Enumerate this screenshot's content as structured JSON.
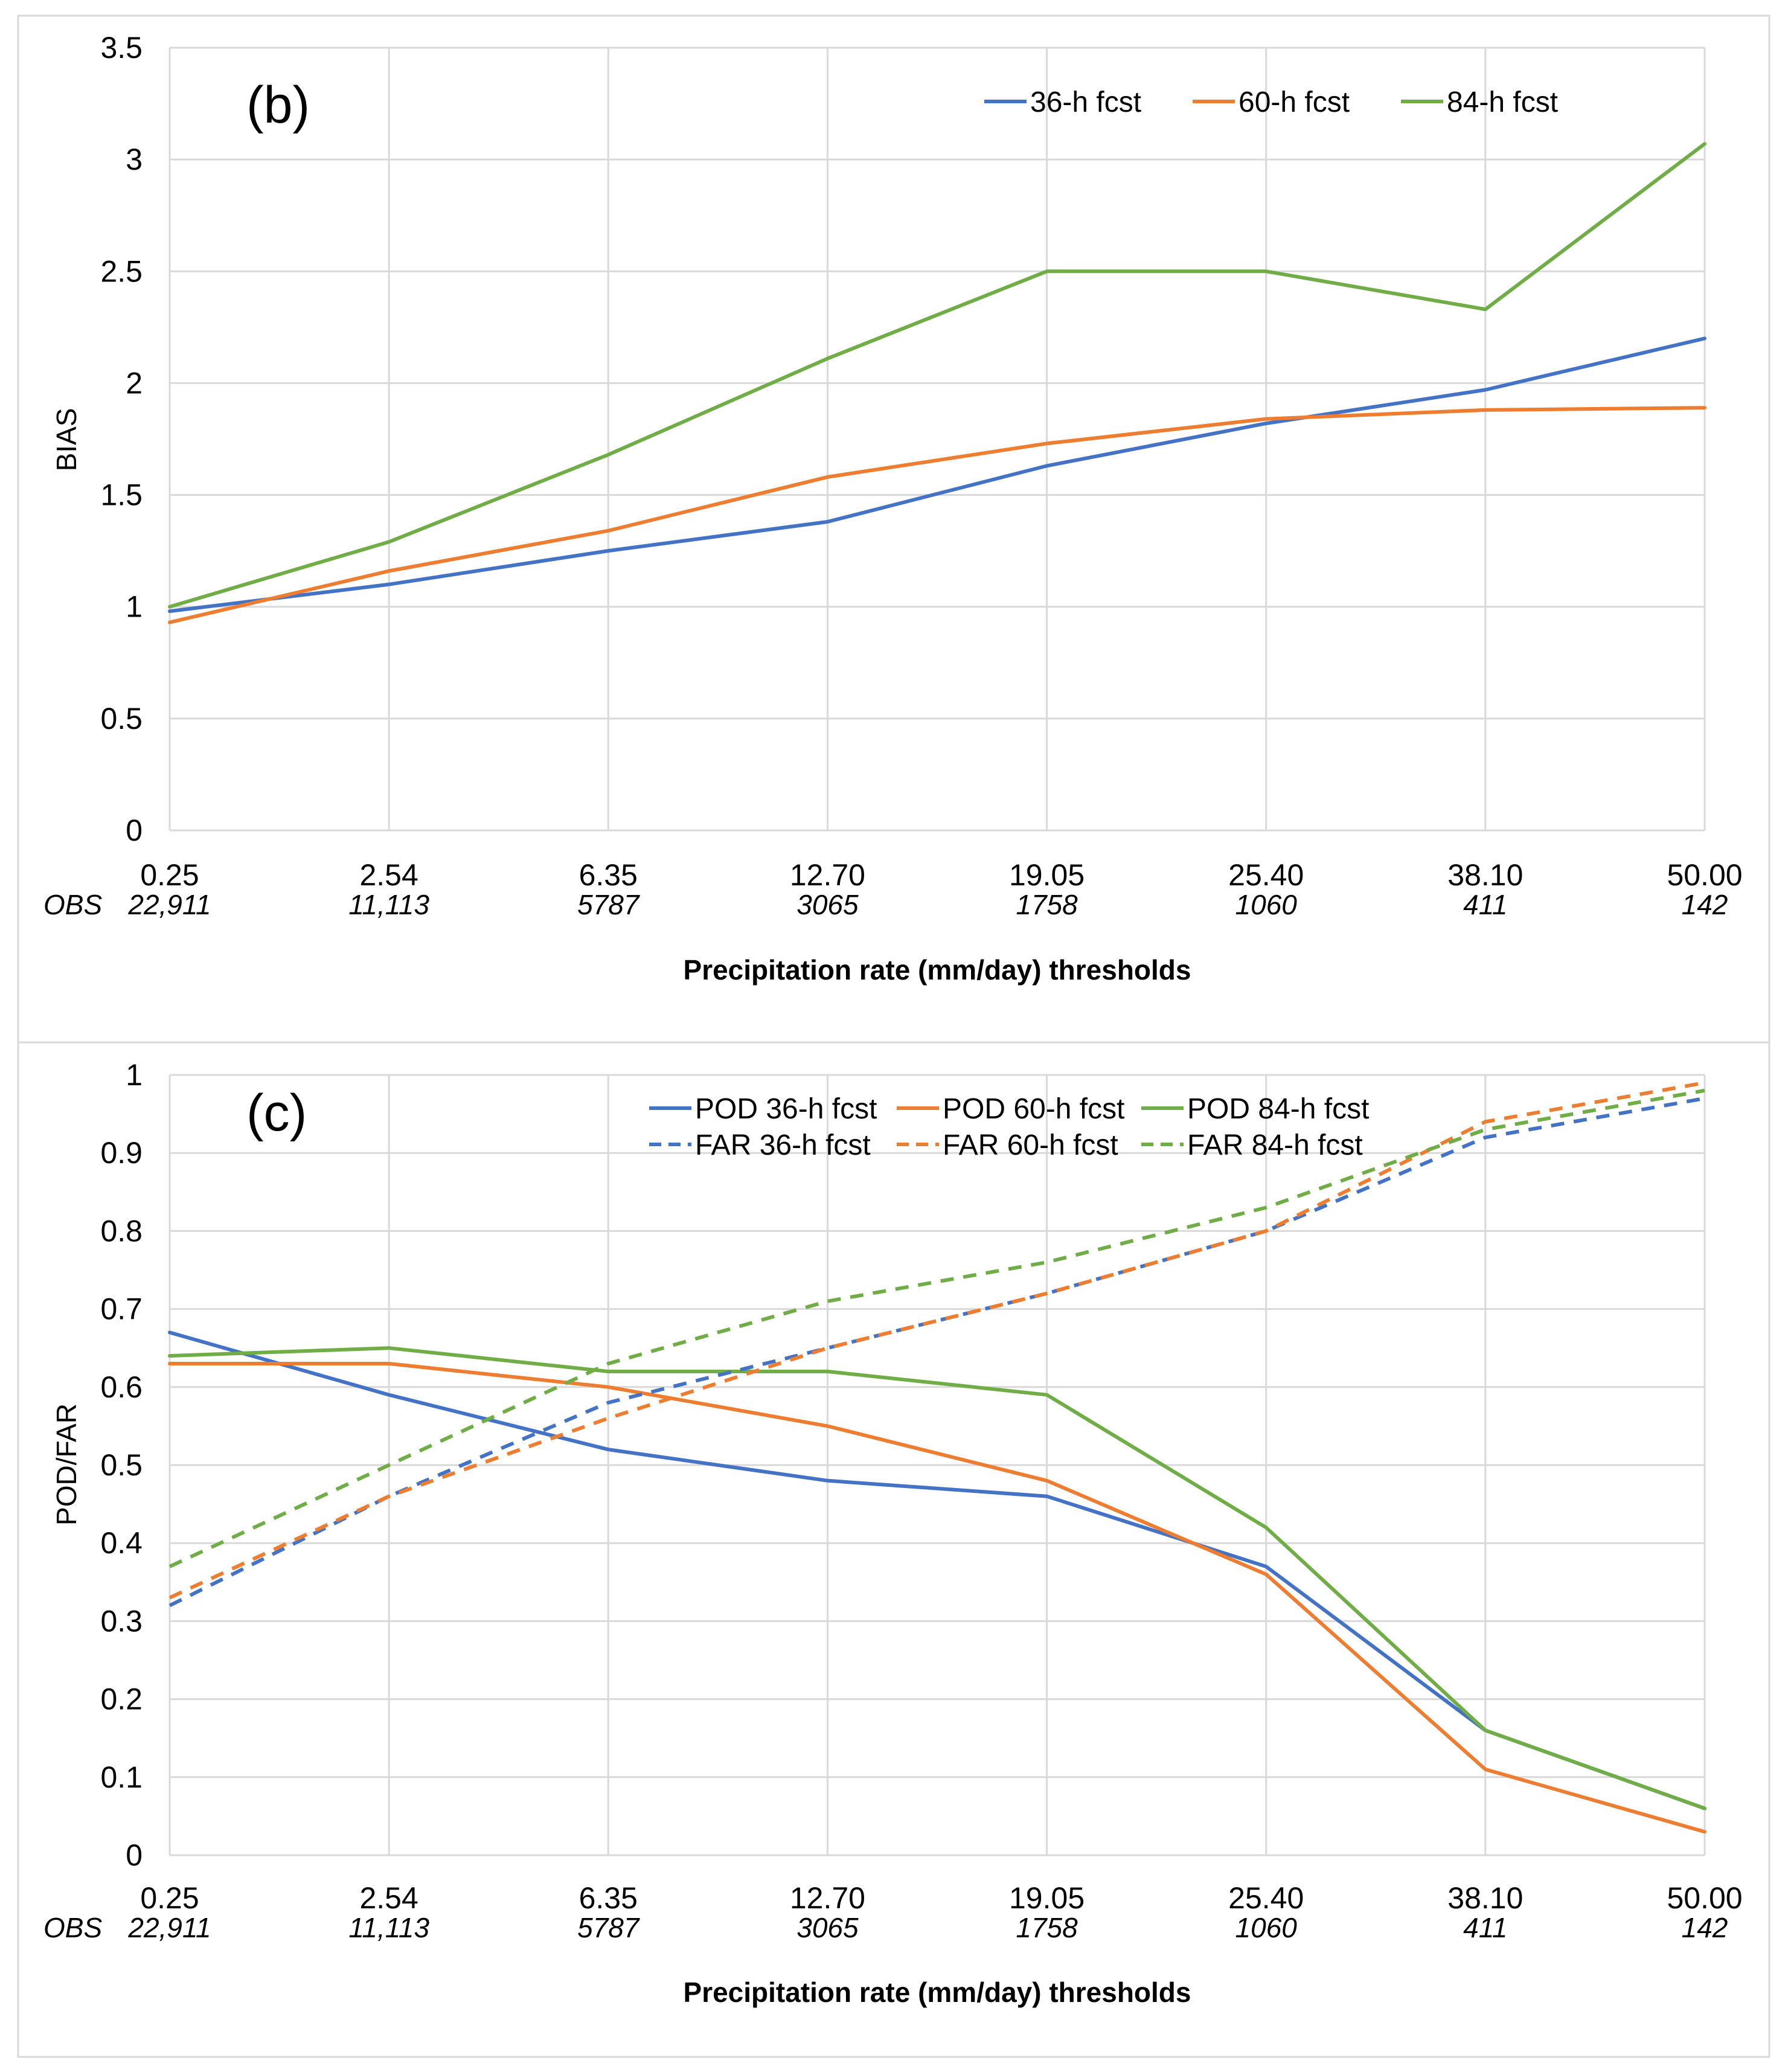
{
  "chart_data": [
    {
      "type": "line",
      "panel_label": "(b)",
      "categories": [
        "0.25",
        "2.54",
        "6.35",
        "12.70",
        "19.05",
        "25.40",
        "38.10",
        "50.00"
      ],
      "obs_label": "OBS",
      "obs_counts": [
        "22,911",
        "11,113",
        "5787",
        "3065",
        "1758",
        "1060",
        "411",
        "142"
      ],
      "ylabel": "BIAS",
      "xlabel": "Precipitation rate (mm/day) thresholds",
      "ylim": [
        0,
        3.5
      ],
      "yticks": [
        0,
        0.5,
        1,
        1.5,
        2,
        2.5,
        3,
        3.5
      ],
      "ytick_labels": [
        "0",
        "0.5",
        "1",
        "1.5",
        "2",
        "2.5",
        "3",
        "3.5"
      ],
      "grid": true,
      "legend_position": "top-right",
      "series": [
        {
          "name": "36-h fcst",
          "color": "#4472C4",
          "dash": "solid",
          "values": [
            0.98,
            1.1,
            1.25,
            1.38,
            1.63,
            1.82,
            1.97,
            2.2
          ]
        },
        {
          "name": "60-h fcst",
          "color": "#ED7D31",
          "dash": "solid",
          "values": [
            0.93,
            1.16,
            1.34,
            1.58,
            1.73,
            1.84,
            1.88,
            1.89
          ]
        },
        {
          "name": "84-h fcst",
          "color": "#70AD47",
          "dash": "solid",
          "values": [
            1.0,
            1.29,
            1.68,
            2.11,
            2.5,
            2.5,
            2.33,
            3.07
          ]
        }
      ]
    },
    {
      "type": "line",
      "panel_label": "(c)",
      "categories": [
        "0.25",
        "2.54",
        "6.35",
        "12.70",
        "19.05",
        "25.40",
        "38.10",
        "50.00"
      ],
      "obs_label": "OBS",
      "obs_counts": [
        "22,911",
        "11,113",
        "5787",
        "3065",
        "1758",
        "1060",
        "411",
        "142"
      ],
      "ylabel": "POD/FAR",
      "xlabel": "Precipitation rate (mm/day) thresholds",
      "ylim": [
        0,
        1
      ],
      "yticks": [
        0,
        0.1,
        0.2,
        0.3,
        0.4,
        0.5,
        0.6,
        0.7,
        0.8,
        0.9,
        1
      ],
      "ytick_labels": [
        "0",
        "0.1",
        "0.2",
        "0.3",
        "0.4",
        "0.5",
        "0.6",
        "0.7",
        "0.8",
        "0.9",
        "1"
      ],
      "grid": true,
      "legend_position": "top-center",
      "series": [
        {
          "name": "POD 36-h fcst",
          "color": "#4472C4",
          "dash": "solid",
          "values": [
            0.67,
            0.59,
            0.52,
            0.48,
            0.46,
            0.37,
            0.16,
            null
          ]
        },
        {
          "name": "POD 60-h fcst",
          "color": "#ED7D31",
          "dash": "solid",
          "values": [
            0.63,
            0.63,
            0.6,
            0.55,
            0.48,
            0.36,
            0.11,
            0.03
          ]
        },
        {
          "name": "POD 84-h fcst",
          "color": "#70AD47",
          "dash": "solid",
          "values": [
            0.64,
            0.65,
            0.62,
            0.62,
            0.59,
            0.42,
            0.16,
            0.06
          ]
        },
        {
          "name": "FAR 36-h fcst",
          "color": "#4472C4",
          "dash": "dashed",
          "values": [
            0.32,
            0.46,
            0.58,
            0.65,
            0.72,
            0.8,
            0.92,
            0.97
          ]
        },
        {
          "name": "FAR 60-h fcst",
          "color": "#ED7D31",
          "dash": "dashed",
          "values": [
            0.33,
            0.46,
            0.56,
            0.65,
            0.72,
            0.8,
            0.94,
            0.99
          ]
        },
        {
          "name": "FAR 84-h fcst",
          "color": "#70AD47",
          "dash": "dashed",
          "values": [
            0.37,
            0.5,
            0.63,
            0.71,
            0.76,
            0.83,
            0.93,
            0.98
          ]
        }
      ]
    }
  ]
}
